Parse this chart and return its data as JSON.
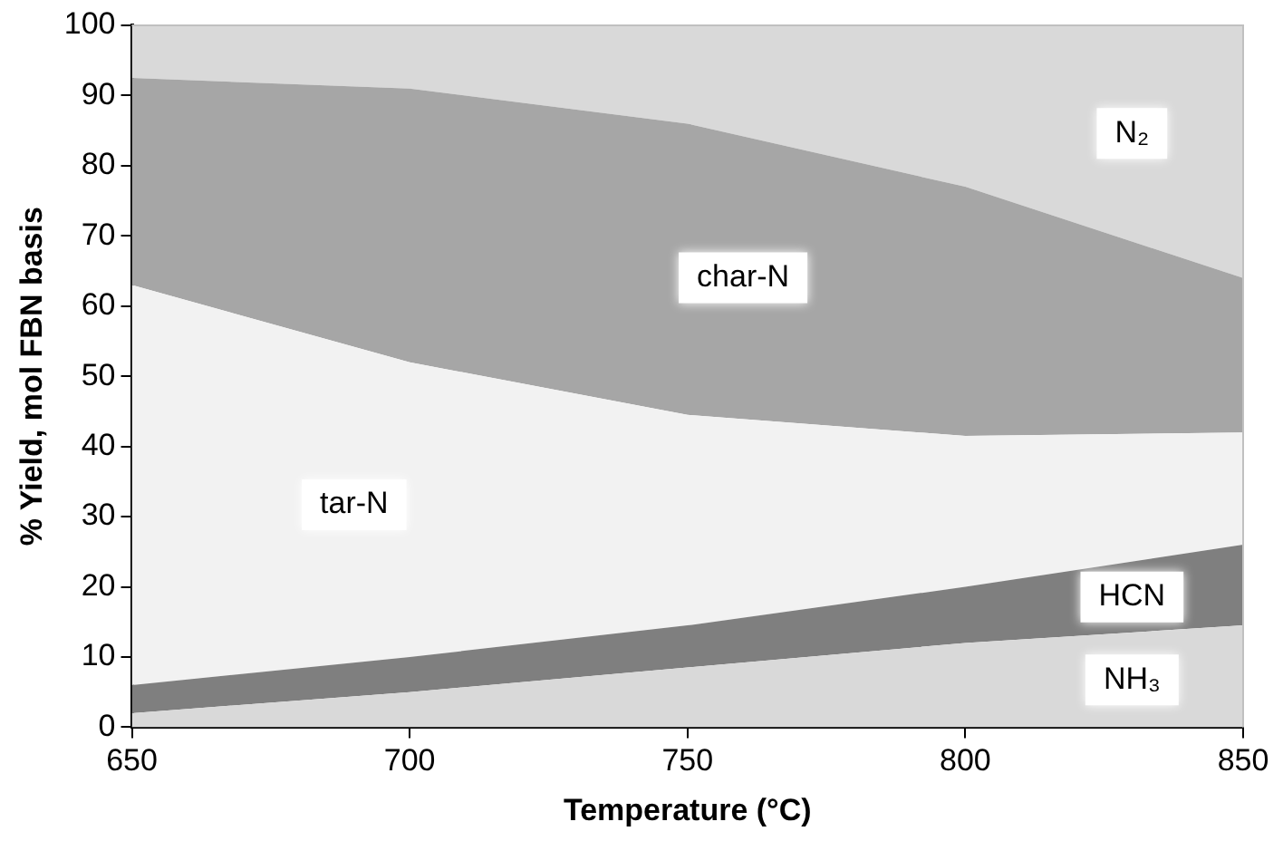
{
  "chart_data": {
    "type": "area",
    "stacked": true,
    "xlabel": "Temperature (°C)",
    "ylabel": "% Yield, mol FBN basis",
    "x": [
      650,
      700,
      750,
      800,
      850
    ],
    "xlim": [
      650,
      850
    ],
    "xticks": [
      650,
      700,
      750,
      800,
      850
    ],
    "ylim": [
      0,
      100
    ],
    "yticks": [
      0,
      10,
      20,
      30,
      40,
      50,
      60,
      70,
      80,
      90,
      100
    ],
    "grid": false,
    "legend": false,
    "series": [
      {
        "name": "NH₃",
        "color": "#d9d9d9",
        "values": [
          2,
          5,
          8.5,
          12,
          14.5
        ]
      },
      {
        "name": "HCN",
        "color": "#7f7f7f",
        "values": [
          4,
          5,
          6,
          8,
          11.5
        ]
      },
      {
        "name": "tar-N",
        "color": "#f2f2f2",
        "values": [
          57,
          42,
          30,
          21.5,
          16
        ]
      },
      {
        "name": "char-N",
        "color": "#a6a6a6",
        "values": [
          29.5,
          39,
          41.5,
          35.5,
          22
        ]
      },
      {
        "name": "N₂",
        "color": "#d9d9d9",
        "values": [
          7.5,
          9,
          14,
          23,
          36
        ]
      }
    ]
  }
}
